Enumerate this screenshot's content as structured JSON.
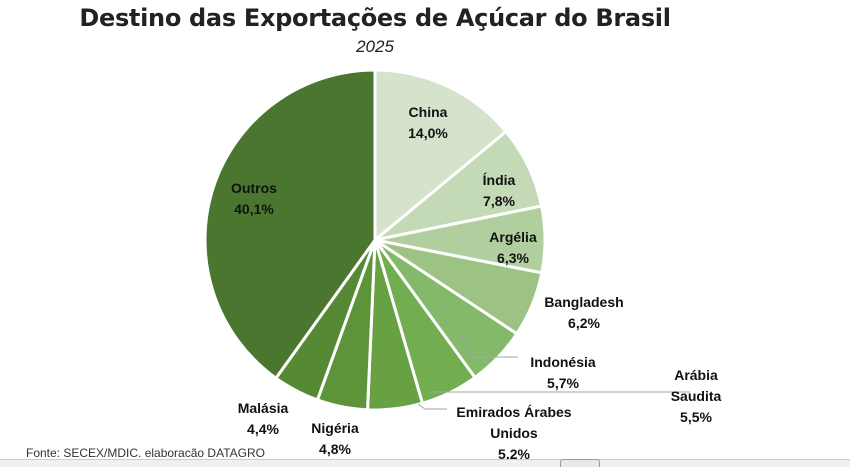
{
  "chart_data": {
    "type": "pie",
    "title": "Destino das Exportações de Açúcar do Brasil",
    "subtitle": "2025",
    "slices": [
      {
        "label": "China",
        "value": 14.0,
        "text": "14,0%",
        "color": "#d5e3cc"
      },
      {
        "label": "Índia",
        "value": 7.8,
        "text": "7,8%",
        "color": "#c4d9b6"
      },
      {
        "label": "Argélia",
        "value": 6.3,
        "text": "6,3%",
        "color": "#b1cf9e"
      },
      {
        "label": "Bangladesh",
        "value": 6.2,
        "text": "6,2%",
        "color": "#9cc384"
      },
      {
        "label": "Indonésia",
        "value": 5.7,
        "text": "5,7%",
        "color": "#85b96a"
      },
      {
        "label": "Arábia Saudita",
        "value": 5.5,
        "text": "5,5%",
        "color": "#72ad4f"
      },
      {
        "label": "Emirados Árabes Unidos",
        "value": 5.2,
        "text": "5,2%",
        "color": "#67a141"
      },
      {
        "label": "Nigéria",
        "value": 4.8,
        "text": "4,8%",
        "color": "#5e9439"
      },
      {
        "label": "Malásia",
        "value": 4.4,
        "text": "4,4%",
        "color": "#568934"
      },
      {
        "label": "Outros",
        "value": 40.1,
        "text": "40,1%",
        "color": "#4a7630"
      }
    ],
    "start": "top",
    "direction": "clockwise"
  },
  "source": "Fonte: SECEX/MDIC. elaboracão DATAGRO"
}
